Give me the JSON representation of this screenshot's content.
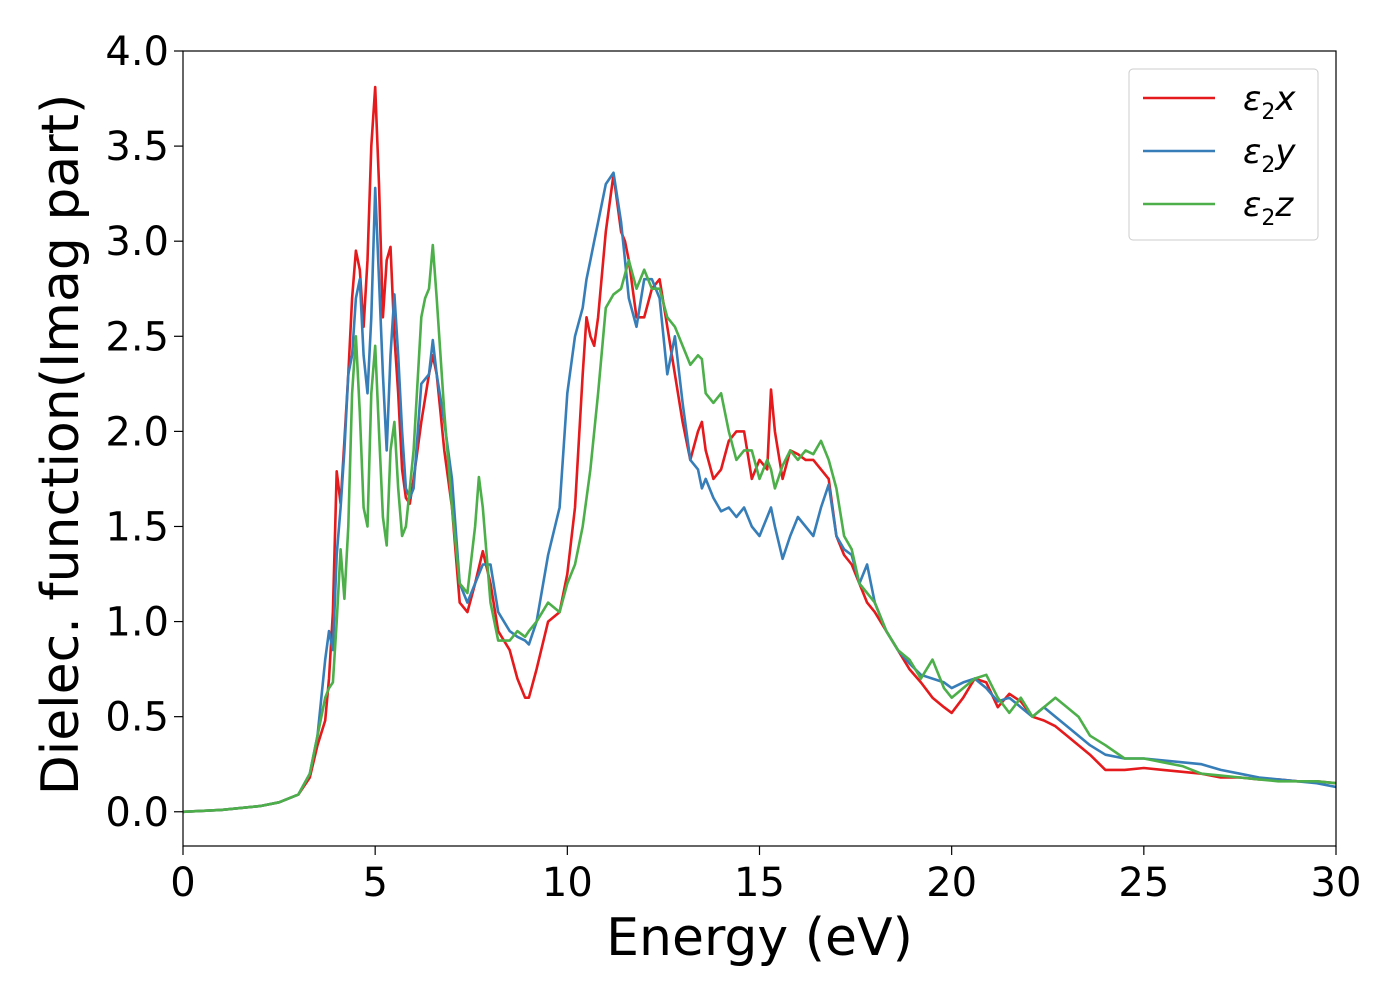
{
  "chart_data": {
    "type": "line",
    "xlabel": "Energy (eV)",
    "ylabel": "Dielec. function(Imag part)",
    "xlim": [
      0,
      30
    ],
    "ylim": [
      -0.18,
      4.0
    ],
    "xticks": [
      "0",
      "5",
      "10",
      "15",
      "20",
      "25",
      "30"
    ],
    "yticks": [
      "0.0",
      "0.5",
      "1.0",
      "1.5",
      "2.0",
      "2.5",
      "3.0",
      "3.5",
      "4.0"
    ],
    "grid": false,
    "legend_position": "top-right",
    "series": [
      {
        "name": "ε₂x",
        "legend": {
          "sym": "ε",
          "sub": "2",
          "var": "x"
        },
        "color": "#e41a1c",
        "x": [
          0,
          1,
          2,
          2.5,
          3,
          3.3,
          3.5,
          3.7,
          3.8,
          3.9,
          4.0,
          4.1,
          4.2,
          4.3,
          4.4,
          4.5,
          4.6,
          4.7,
          4.8,
          4.9,
          5.0,
          5.1,
          5.2,
          5.3,
          5.4,
          5.5,
          5.6,
          5.7,
          5.8,
          5.9,
          6.0,
          6.2,
          6.4,
          6.5,
          6.6,
          6.8,
          7.0,
          7.2,
          7.4,
          7.6,
          7.8,
          8.0,
          8.2,
          8.5,
          8.7,
          8.9,
          9.0,
          9.2,
          9.5,
          9.8,
          10.0,
          10.2,
          10.4,
          10.5,
          10.6,
          10.7,
          10.8,
          11.0,
          11.2,
          11.4,
          11.5,
          11.6,
          11.8,
          12.0,
          12.2,
          12.4,
          12.6,
          12.8,
          13.0,
          13.2,
          13.4,
          13.5,
          13.6,
          13.8,
          14.0,
          14.2,
          14.4,
          14.6,
          14.8,
          15.0,
          15.2,
          15.3,
          15.4,
          15.6,
          15.8,
          16.0,
          16.2,
          16.4,
          16.6,
          16.8,
          17.0,
          17.2,
          17.4,
          17.6,
          17.8,
          18.0,
          18.3,
          18.6,
          18.9,
          19.2,
          19.5,
          19.8,
          20.0,
          20.3,
          20.6,
          20.9,
          21.2,
          21.5,
          21.8,
          22.1,
          22.4,
          22.7,
          23.0,
          23.3,
          23.6,
          24.0,
          24.5,
          25.0,
          25.5,
          26.0,
          26.5,
          27.0,
          27.5,
          28.0,
          28.5,
          29.0,
          29.5,
          30.0
        ],
        "y": [
          0.0,
          0.01,
          0.03,
          0.05,
          0.09,
          0.18,
          0.35,
          0.48,
          0.7,
          1.05,
          1.79,
          1.62,
          1.95,
          2.3,
          2.7,
          2.95,
          2.85,
          2.55,
          2.9,
          3.5,
          3.81,
          3.3,
          2.6,
          2.9,
          2.97,
          2.5,
          2.2,
          1.8,
          1.65,
          1.62,
          1.75,
          2.05,
          2.3,
          2.4,
          2.3,
          1.9,
          1.6,
          1.1,
          1.05,
          1.2,
          1.37,
          1.2,
          0.95,
          0.85,
          0.7,
          0.6,
          0.6,
          0.75,
          1.0,
          1.05,
          1.25,
          1.6,
          2.3,
          2.6,
          2.5,
          2.45,
          2.6,
          3.05,
          3.35,
          3.05,
          3.0,
          2.9,
          2.6,
          2.6,
          2.75,
          2.8,
          2.55,
          2.3,
          2.05,
          1.85,
          2.0,
          2.05,
          1.9,
          1.75,
          1.8,
          1.95,
          2.0,
          2.0,
          1.75,
          1.85,
          1.8,
          2.22,
          2.0,
          1.75,
          1.9,
          1.88,
          1.85,
          1.85,
          1.8,
          1.75,
          1.45,
          1.35,
          1.3,
          1.2,
          1.1,
          1.05,
          0.95,
          0.85,
          0.75,
          0.68,
          0.6,
          0.55,
          0.52,
          0.6,
          0.7,
          0.68,
          0.55,
          0.62,
          0.58,
          0.5,
          0.48,
          0.45,
          0.4,
          0.35,
          0.3,
          0.22,
          0.22,
          0.23,
          0.22,
          0.21,
          0.2,
          0.18,
          0.18,
          0.17,
          0.17,
          0.16,
          0.16,
          0.15
        ]
      },
      {
        "name": "ε₂y",
        "legend": {
          "sym": "ε",
          "sub": "2",
          "var": "y"
        },
        "color": "#377eb8",
        "x": [
          0,
          1,
          2,
          2.5,
          3,
          3.3,
          3.5,
          3.7,
          3.8,
          3.9,
          4.0,
          4.1,
          4.2,
          4.3,
          4.4,
          4.5,
          4.6,
          4.7,
          4.8,
          4.9,
          5.0,
          5.1,
          5.2,
          5.3,
          5.4,
          5.5,
          5.6,
          5.7,
          5.8,
          5.9,
          6.0,
          6.2,
          6.4,
          6.5,
          6.6,
          6.8,
          7.0,
          7.2,
          7.4,
          7.6,
          7.8,
          8.0,
          8.2,
          8.5,
          8.7,
          8.9,
          9.0,
          9.2,
          9.5,
          9.8,
          10.0,
          10.2,
          10.4,
          10.5,
          10.6,
          10.7,
          10.8,
          11.0,
          11.2,
          11.4,
          11.5,
          11.6,
          11.8,
          12.0,
          12.2,
          12.4,
          12.6,
          12.8,
          13.0,
          13.2,
          13.4,
          13.5,
          13.6,
          13.8,
          14.0,
          14.2,
          14.4,
          14.6,
          14.8,
          15.0,
          15.2,
          15.3,
          15.4,
          15.6,
          15.8,
          16.0,
          16.2,
          16.4,
          16.6,
          16.8,
          17.0,
          17.2,
          17.4,
          17.6,
          17.8,
          18.0,
          18.3,
          18.6,
          18.9,
          19.2,
          19.5,
          19.8,
          20.0,
          20.3,
          20.6,
          20.9,
          21.2,
          21.5,
          21.8,
          22.1,
          22.4,
          22.7,
          23.0,
          23.3,
          23.6,
          24.0,
          24.5,
          25.0,
          25.5,
          26.0,
          26.5,
          27.0,
          27.5,
          28.0,
          28.5,
          29.0,
          29.5,
          30.0
        ],
        "y": [
          0.0,
          0.01,
          0.03,
          0.05,
          0.09,
          0.2,
          0.4,
          0.8,
          0.95,
          0.85,
          1.35,
          1.6,
          1.9,
          2.3,
          2.4,
          2.7,
          2.8,
          2.4,
          2.2,
          2.6,
          3.28,
          2.8,
          2.3,
          1.9,
          2.4,
          2.72,
          2.4,
          2.0,
          1.7,
          1.65,
          1.7,
          2.25,
          2.3,
          2.48,
          2.3,
          2.05,
          1.75,
          1.2,
          1.1,
          1.2,
          1.3,
          1.3,
          1.05,
          0.95,
          0.92,
          0.9,
          0.88,
          1.0,
          1.35,
          1.6,
          2.2,
          2.5,
          2.65,
          2.8,
          2.9,
          3.0,
          3.1,
          3.3,
          3.36,
          3.1,
          2.9,
          2.7,
          2.55,
          2.8,
          2.8,
          2.7,
          2.3,
          2.5,
          2.15,
          1.85,
          1.8,
          1.7,
          1.75,
          1.65,
          1.58,
          1.6,
          1.55,
          1.6,
          1.5,
          1.45,
          1.55,
          1.6,
          1.5,
          1.33,
          1.45,
          1.55,
          1.5,
          1.45,
          1.6,
          1.72,
          1.45,
          1.38,
          1.35,
          1.2,
          1.3,
          1.1,
          0.95,
          0.85,
          0.78,
          0.72,
          0.7,
          0.68,
          0.65,
          0.68,
          0.7,
          0.65,
          0.58,
          0.6,
          0.55,
          0.5,
          0.55,
          0.5,
          0.45,
          0.4,
          0.35,
          0.3,
          0.28,
          0.28,
          0.27,
          0.26,
          0.25,
          0.22,
          0.2,
          0.18,
          0.17,
          0.16,
          0.15,
          0.13
        ]
      },
      {
        "name": "ε₂z",
        "legend": {
          "sym": "ε",
          "sub": "2",
          "var": "z"
        },
        "color": "#4daf4a",
        "x": [
          0,
          1,
          2,
          2.5,
          3,
          3.3,
          3.5,
          3.7,
          3.8,
          3.9,
          4.0,
          4.1,
          4.2,
          4.3,
          4.4,
          4.5,
          4.6,
          4.7,
          4.8,
          4.9,
          5.0,
          5.1,
          5.2,
          5.3,
          5.4,
          5.5,
          5.6,
          5.7,
          5.8,
          5.9,
          6.0,
          6.2,
          6.3,
          6.4,
          6.5,
          6.6,
          6.8,
          7.0,
          7.2,
          7.4,
          7.6,
          7.7,
          7.8,
          8.0,
          8.2,
          8.5,
          8.7,
          8.9,
          9.0,
          9.2,
          9.5,
          9.8,
          10.0,
          10.2,
          10.4,
          10.6,
          10.8,
          11.0,
          11.2,
          11.4,
          11.6,
          11.8,
          12.0,
          12.2,
          12.4,
          12.6,
          12.8,
          13.0,
          13.2,
          13.4,
          13.5,
          13.6,
          13.8,
          14.0,
          14.2,
          14.4,
          14.6,
          14.8,
          15.0,
          15.2,
          15.3,
          15.4,
          15.6,
          15.8,
          16.0,
          16.2,
          16.4,
          16.6,
          16.8,
          17.0,
          17.2,
          17.4,
          17.6,
          17.8,
          18.0,
          18.3,
          18.6,
          18.9,
          19.2,
          19.5,
          19.8,
          20.0,
          20.3,
          20.6,
          20.9,
          21.2,
          21.5,
          21.8,
          22.1,
          22.4,
          22.7,
          23.0,
          23.3,
          23.6,
          24.0,
          24.5,
          25.0,
          25.5,
          26.0,
          26.5,
          27.0,
          27.5,
          28.0,
          28.5,
          29.0,
          29.5,
          30.0
        ],
        "y": [
          0.0,
          0.01,
          0.03,
          0.05,
          0.09,
          0.2,
          0.4,
          0.6,
          0.65,
          0.68,
          1.0,
          1.38,
          1.12,
          1.5,
          2.2,
          2.5,
          2.1,
          1.6,
          1.5,
          2.2,
          2.45,
          2.0,
          1.55,
          1.4,
          1.9,
          2.05,
          1.7,
          1.45,
          1.5,
          1.7,
          1.9,
          2.6,
          2.7,
          2.75,
          2.98,
          2.7,
          2.1,
          1.6,
          1.2,
          1.15,
          1.5,
          1.76,
          1.6,
          1.1,
          0.9,
          0.9,
          0.95,
          0.92,
          0.95,
          1.0,
          1.1,
          1.05,
          1.2,
          1.3,
          1.5,
          1.8,
          2.2,
          2.65,
          2.72,
          2.75,
          2.9,
          2.75,
          2.85,
          2.75,
          2.75,
          2.6,
          2.55,
          2.45,
          2.35,
          2.4,
          2.38,
          2.2,
          2.15,
          2.2,
          2.0,
          1.85,
          1.9,
          1.9,
          1.75,
          1.85,
          1.8,
          1.7,
          1.82,
          1.9,
          1.85,
          1.9,
          1.88,
          1.95,
          1.85,
          1.7,
          1.45,
          1.38,
          1.2,
          1.15,
          1.1,
          0.95,
          0.85,
          0.8,
          0.7,
          0.8,
          0.65,
          0.6,
          0.65,
          0.7,
          0.72,
          0.6,
          0.52,
          0.6,
          0.5,
          0.55,
          0.6,
          0.55,
          0.5,
          0.4,
          0.35,
          0.28,
          0.28,
          0.26,
          0.24,
          0.2,
          0.19,
          0.18,
          0.17,
          0.16,
          0.16,
          0.16,
          0.15
        ]
      }
    ]
  }
}
